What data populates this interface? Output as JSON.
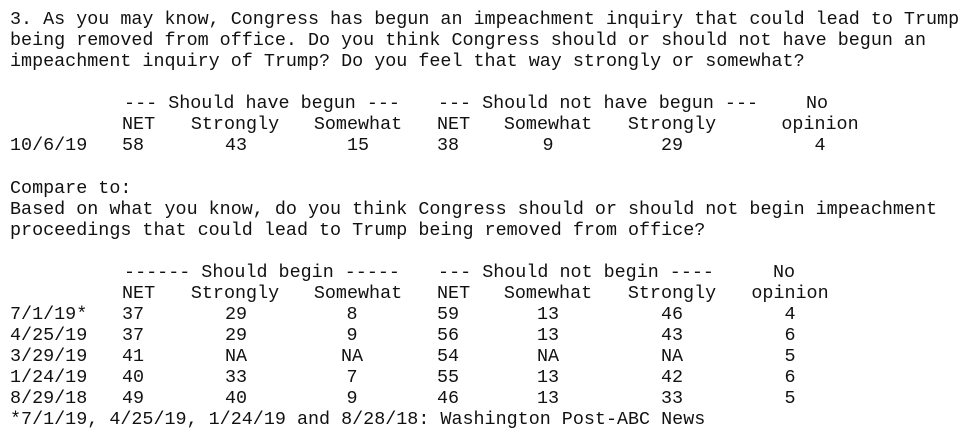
{
  "question": {
    "lines": [
      "3. As you may know, Congress has begun an impeachment inquiry that could lead to Trump",
      "being removed from office. Do you think Congress should or should not have begun an",
      "impeachment inquiry of Trump? Do you feel that way strongly or somewhat?"
    ]
  },
  "table1": {
    "group_headers": [
      "--- Should have begun ---",
      "--- Should not have begun ---",
      "No"
    ],
    "column_headers": [
      "NET",
      "Strongly",
      "Somewhat",
      "NET",
      "Somewhat",
      "Strongly",
      "opinion"
    ],
    "rows": [
      {
        "date": "10/6/19",
        "cells": [
          58,
          43,
          15,
          38,
          9,
          29,
          4
        ]
      }
    ]
  },
  "compare": {
    "lines": [
      "Compare to:",
      "Based on what you know, do you think Congress should or should not begin impeachment",
      "proceedings that could lead to Trump being removed from office?"
    ]
  },
  "table2": {
    "group_headers": [
      "------ Should begin -----",
      "--- Should not begin ----",
      "No"
    ],
    "column_headers": [
      "NET",
      "Strongly",
      "Somewhat",
      "NET",
      "Somewhat",
      "Strongly",
      "opinion"
    ],
    "rows": [
      {
        "date": "7/1/19*",
        "cells": [
          37,
          29,
          8,
          59,
          13,
          46,
          4
        ]
      },
      {
        "date": "4/25/19",
        "cells": [
          37,
          29,
          9,
          56,
          13,
          43,
          6
        ]
      },
      {
        "date": "3/29/19",
        "cells": [
          41,
          "NA",
          "NA",
          54,
          "NA",
          "NA",
          5
        ]
      },
      {
        "date": "1/24/19",
        "cells": [
          40,
          33,
          7,
          55,
          13,
          42,
          6
        ]
      },
      {
        "date": "8/29/18",
        "cells": [
          49,
          40,
          9,
          46,
          13,
          33,
          5
        ]
      }
    ],
    "footnote": "*7/1/19, 4/25/19, 1/24/19 and 8/28/18: Washington Post-ABC News"
  }
}
